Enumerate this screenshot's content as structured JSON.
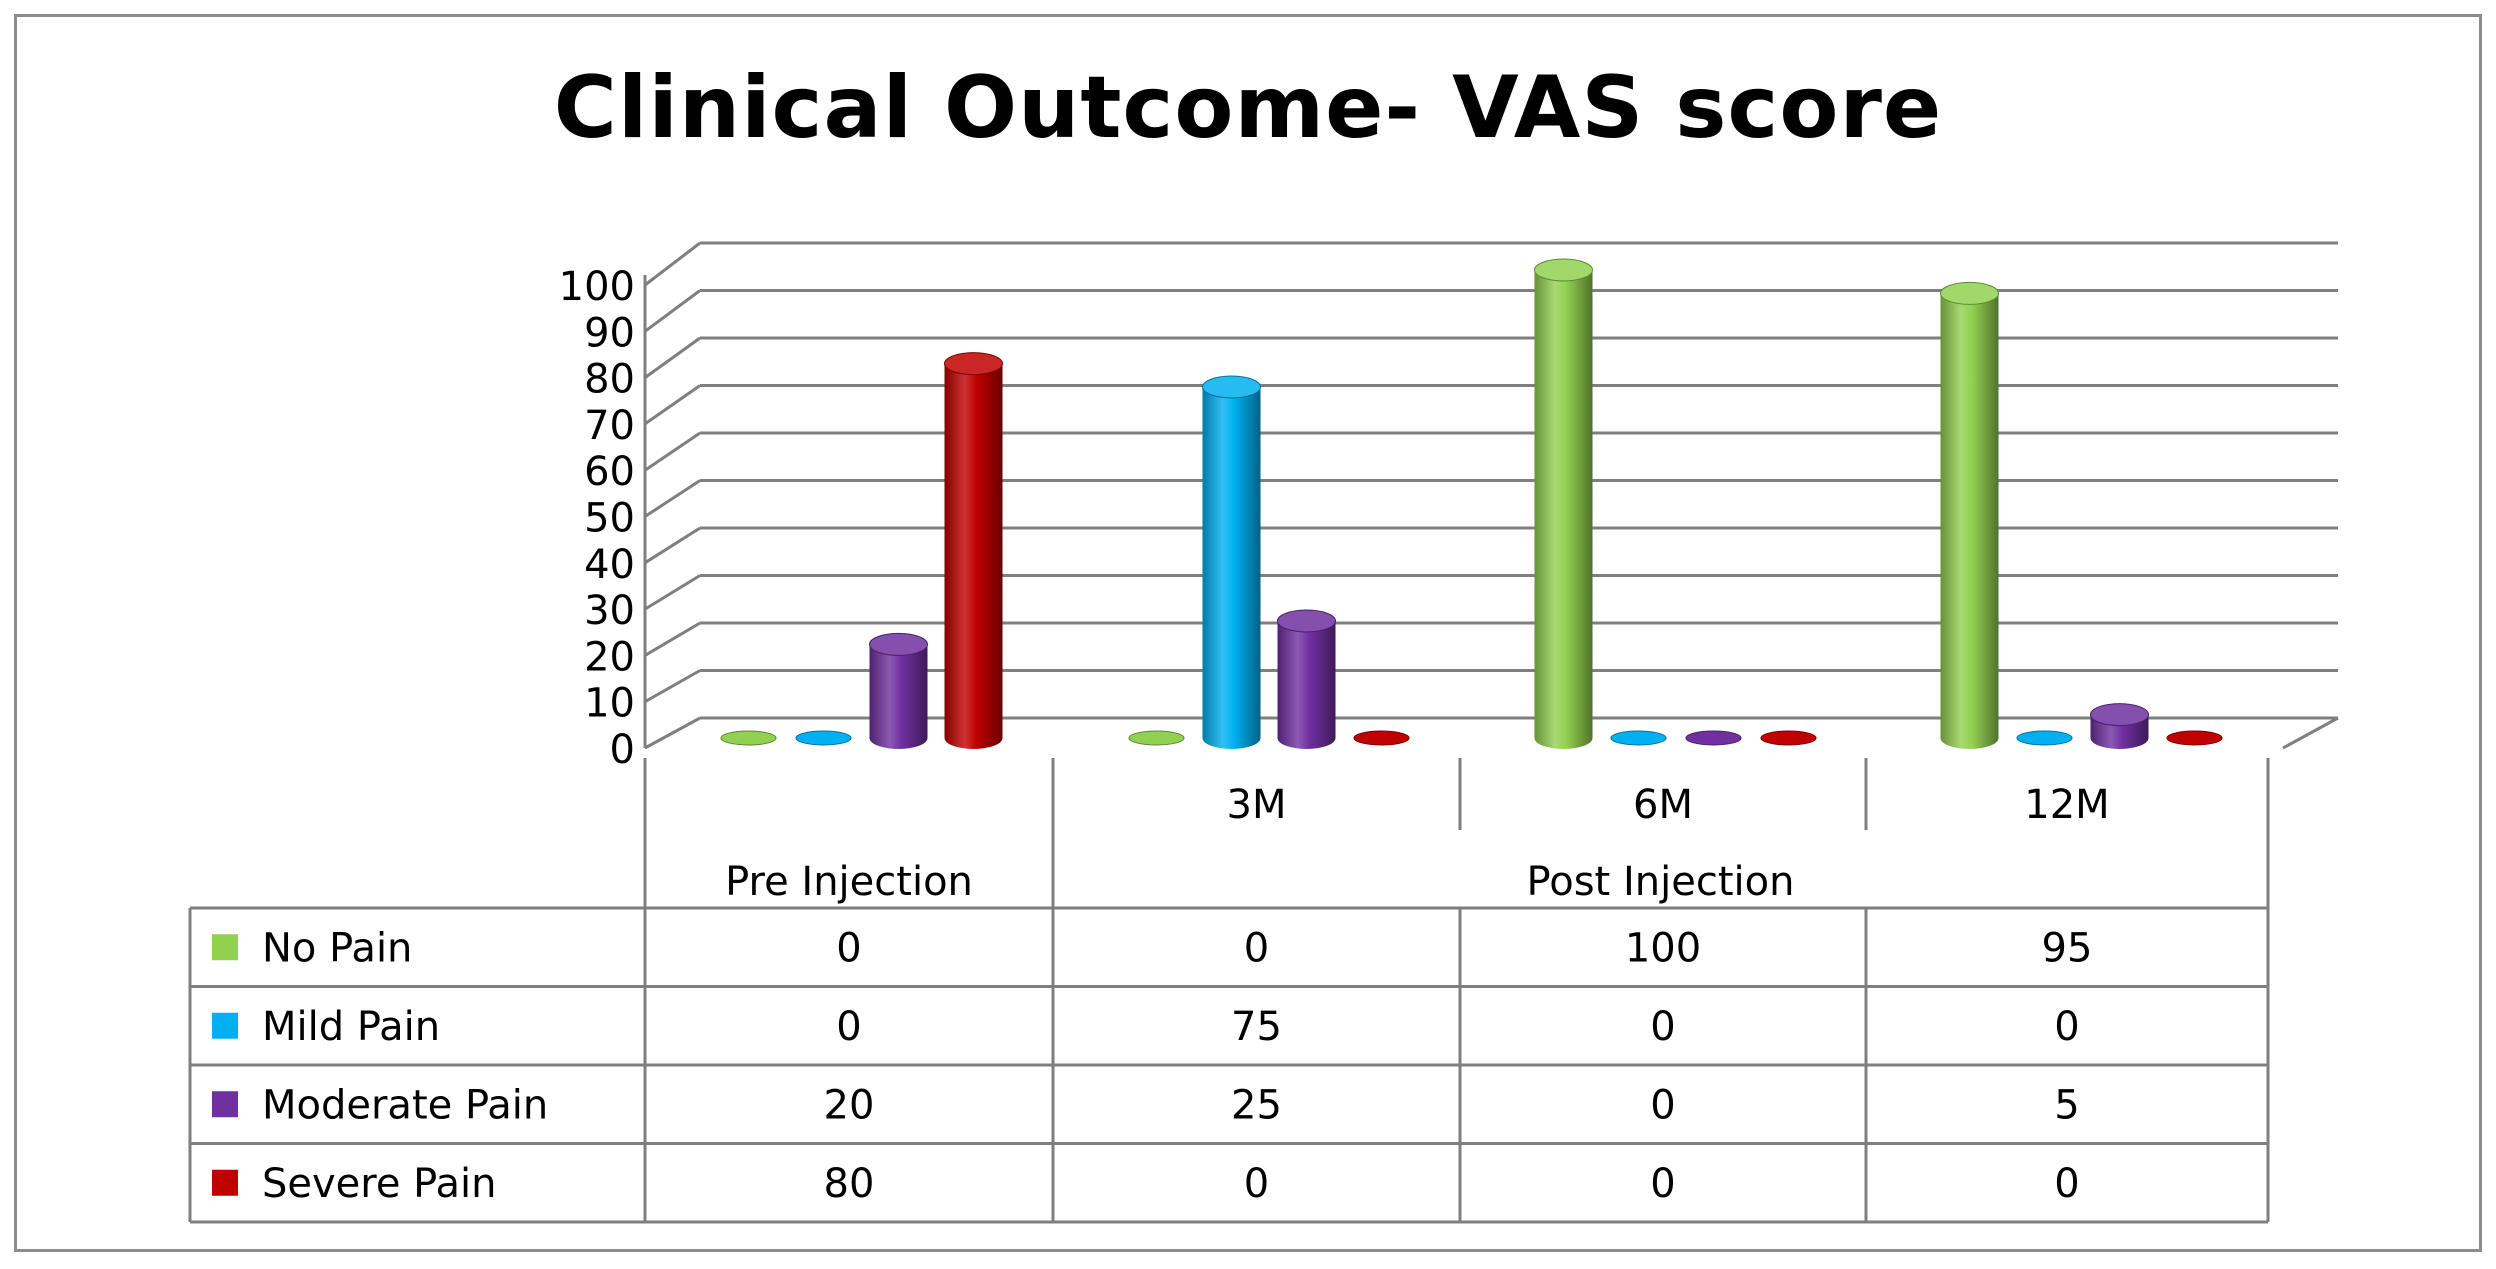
{
  "chart_data": {
    "type": "bar",
    "title": "Clinical Outcome- VAS score",
    "categories": [
      "Pre Injection",
      "3M",
      "6M",
      "12M"
    ],
    "category_groups": [
      {
        "label": "Pre Injection",
        "subcategories": [
          ""
        ]
      },
      {
        "label": "Post Injection",
        "subcategories": [
          "3M",
          "6M",
          "12M"
        ]
      }
    ],
    "series": [
      {
        "name": "No Pain",
        "color": "#92d050",
        "values": [
          0,
          0,
          100,
          95
        ]
      },
      {
        "name": "Mild Pain",
        "color": "#00b0f0",
        "values": [
          0,
          75,
          0,
          0
        ]
      },
      {
        "name": "Moderate Pain",
        "color": "#7030a0",
        "values": [
          20,
          25,
          0,
          5
        ]
      },
      {
        "name": "Severe Pain",
        "color": "#c00000",
        "values": [
          80,
          0,
          0,
          0
        ]
      }
    ],
    "yticks": [
      0,
      10,
      20,
      30,
      40,
      50,
      60,
      70,
      80,
      90,
      100
    ],
    "ylim": [
      0,
      100
    ],
    "xlabel": "",
    "ylabel": "",
    "grid": true,
    "legend": "data-table",
    "style": "3d-cylinder"
  }
}
